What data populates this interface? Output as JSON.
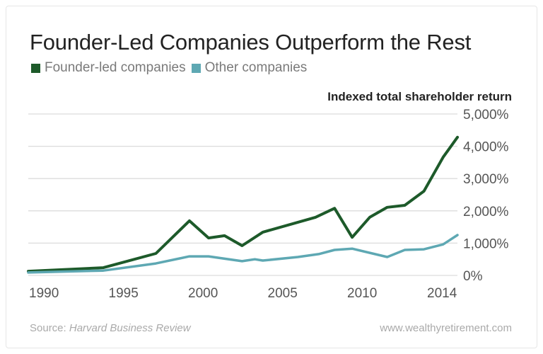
{
  "chart_data": {
    "type": "line",
    "title": "Founder-Led Companies Outperform the Rest",
    "ylabel": "Indexed total shareholder return",
    "xlabel": "",
    "ylim": [
      0,
      5000
    ],
    "xlim": [
      1990,
      2016.9
    ],
    "y_ticks": [
      0,
      1000,
      2000,
      3000,
      4000,
      5000
    ],
    "y_tick_labels": [
      "0%",
      "1,000%",
      "2,000%",
      "3,000%",
      "4,000%",
      "5,000%"
    ],
    "x_ticks": [
      1990,
      1995,
      2000,
      2005,
      2010,
      2014
    ],
    "x_tick_labels": [
      "1990",
      "1995",
      "2000",
      "2005",
      "2010",
      "2014"
    ],
    "y_axis_side": "right",
    "grid": true,
    "legend_placement": "top-left",
    "series": [
      {
        "name": "Founder-led companies",
        "color": "#1d5a2a",
        "x": [
          1990.0,
          1994.7,
          1998.0,
          2000.1,
          2001.3,
          2002.3,
          2003.4,
          2004.7,
          2008.0,
          2009.2,
          2010.3,
          2011.4,
          2012.5,
          2013.6,
          2014.8,
          2016.0,
          2016.9
        ],
        "y": [
          130,
          240,
          680,
          1690,
          1160,
          1230,
          920,
          1340,
          1800,
          2080,
          1180,
          1800,
          2110,
          2170,
          2610,
          3660,
          4280
        ]
      },
      {
        "name": "Other companies",
        "color": "#5ea8b3",
        "x": [
          1990.0,
          1994.7,
          1998.0,
          2000.1,
          2001.3,
          2003.4,
          2004.2,
          2004.7,
          2006.9,
          2008.2,
          2009.2,
          2010.3,
          2012.5,
          2013.6,
          2014.8,
          2016.0,
          2016.9
        ],
        "y": [
          90,
          150,
          370,
          590,
          590,
          440,
          500,
          460,
          570,
          660,
          790,
          830,
          570,
          790,
          810,
          960,
          1250
        ]
      }
    ]
  },
  "footer": {
    "source_prefix": "Source: ",
    "source_name": "Harvard Business Review",
    "website": "www.wealthyretirement.com"
  }
}
